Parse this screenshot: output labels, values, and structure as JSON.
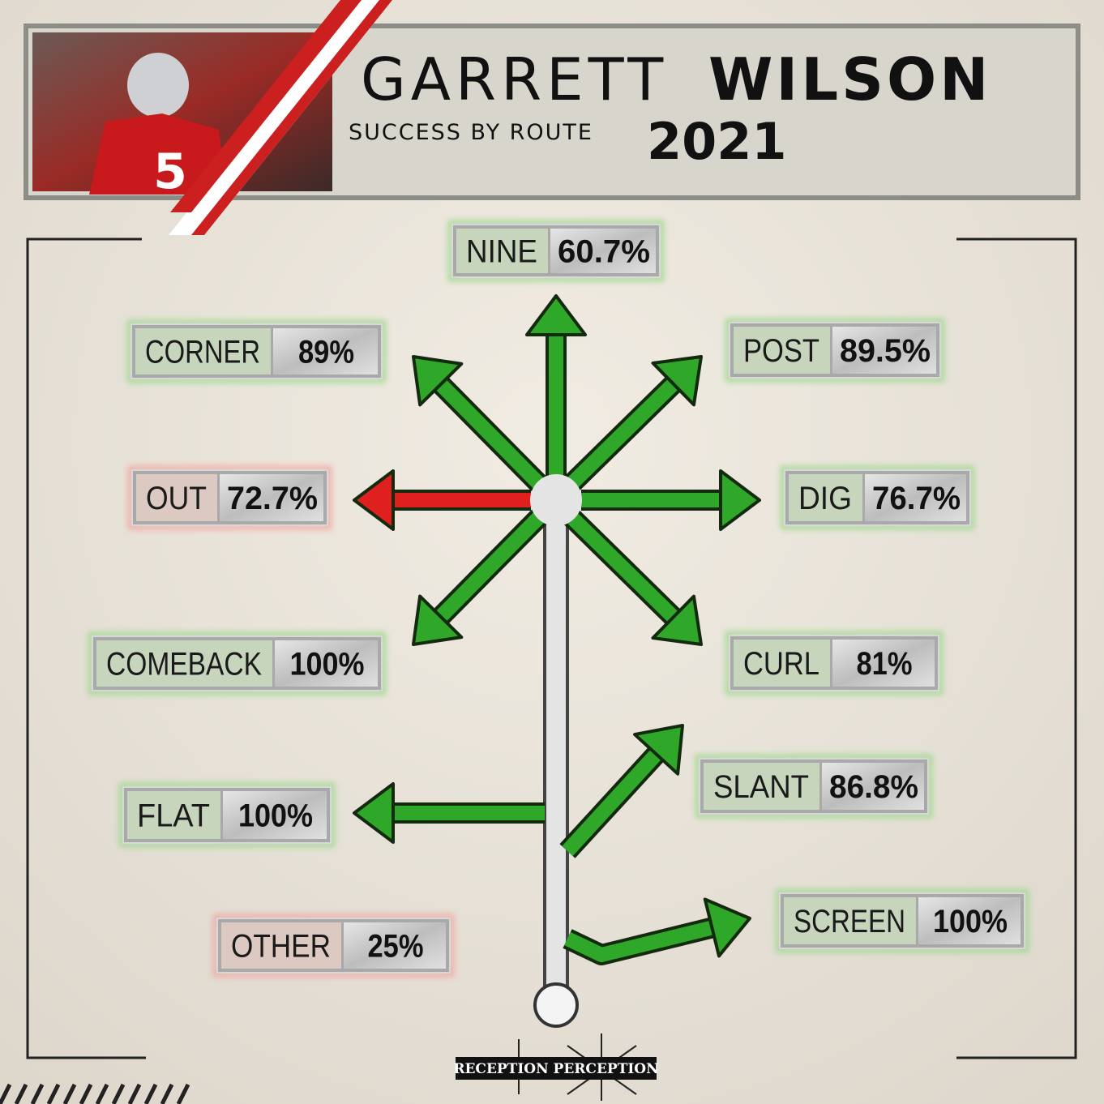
{
  "header": {
    "first_name": "GARRETT",
    "last_name": "WILSON",
    "subtitle": "SUCCESS BY ROUTE",
    "year": "2021"
  },
  "routes": [
    {
      "name": "NINE",
      "success": "60.7%",
      "color": "#2fa82a"
    },
    {
      "name": "CORNER",
      "success": "89%",
      "color": "#2fa82a"
    },
    {
      "name": "POST",
      "success": "89.5%",
      "color": "#2fa82a"
    },
    {
      "name": "OUT",
      "success": "72.7%",
      "color": "#e0201e"
    },
    {
      "name": "DIG",
      "success": "76.7%",
      "color": "#2fa82a"
    },
    {
      "name": "COMEBACK",
      "success": "100%",
      "color": "#2fa82a"
    },
    {
      "name": "CURL",
      "success": "81%",
      "color": "#2fa82a"
    },
    {
      "name": "SLANT",
      "success": "86.8%",
      "color": "#2fa82a"
    },
    {
      "name": "FLAT",
      "success": "100%",
      "color": "#2fa82a"
    },
    {
      "name": "OTHER",
      "success": "25%",
      "color": "#e0201e"
    },
    {
      "name": "SCREEN",
      "success": "100%",
      "color": "#2fa82a"
    }
  ],
  "footer": {
    "logo": "RECEPTION PERCEPTION"
  }
}
